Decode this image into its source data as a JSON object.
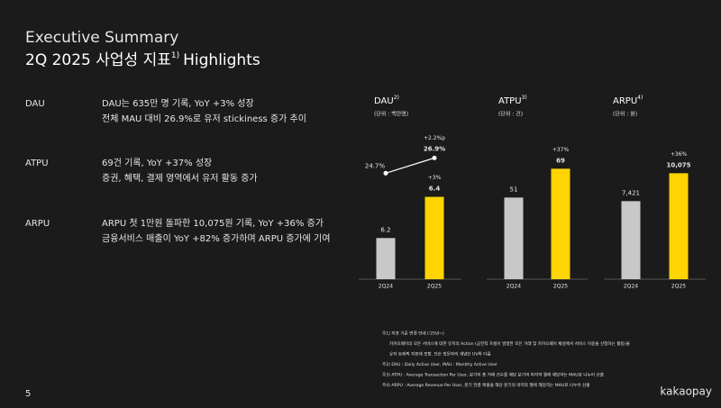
{
  "header": {
    "title": "Executive Summary",
    "subtitle": "2Q 2025 사업성 지표",
    "subtitle_note": "1)",
    "subtitle_end": "Highlights"
  },
  "sections": [
    {
      "label": "DAU",
      "lines": [
        "DAU는 635만 명 기록, YoY +3% 성장",
        "전체 MAU 대비 26.9%로 유저 stickiness 증가 추이"
      ]
    },
    {
      "label": "ATPU",
      "lines": [
        "69건 기록, YoY +37% 성장",
        "증권, 혜택, 결제 영역에서 유저 활동 증가"
      ]
    },
    {
      "label": "ARPU",
      "lines": [
        "ARPU 첫 1만원 돌파한 10,075원 기록, YoY +36% 증가",
        "금융서비스 매출이 YoY +82% 증가하며 ARPU 증가에 기여"
      ]
    }
  ],
  "chart_data": [
    {
      "type": "bar",
      "title": "DAU",
      "title_note": "2)",
      "subtitle": "(단위 : 백만명)",
      "categories": [
        "2Q24",
        "2Q25"
      ],
      "values": [
        6.2,
        6.4
      ],
      "colors": [
        "#c8c8c8",
        "#ffd400"
      ],
      "change_label": "+3%",
      "ylim": [
        6.0,
        6.7
      ],
      "line": {
        "values": [
          24.7,
          26.9
        ],
        "value_labels": [
          "24.7%",
          "26.9%"
        ],
        "change_label": "+2.2%p",
        "color": "#ffffff",
        "y2lim": [
          9.4,
          30.2
        ]
      }
    },
    {
      "type": "bar",
      "title": "ATPU",
      "title_note": "3)",
      "subtitle": "(단위 : 건)",
      "categories": [
        "2Q24",
        "2Q25"
      ],
      "values": [
        51,
        69
      ],
      "colors": [
        "#c8c8c8",
        "#ffd400"
      ],
      "change_label": "+37%",
      "ylim": [
        0,
        90
      ]
    },
    {
      "type": "bar",
      "title": "ARPU",
      "title_note": "4)",
      "subtitle": "(단위 : 원)",
      "categories": [
        "2Q24",
        "2Q25"
      ],
      "values": [
        7421,
        10075
      ],
      "value_labels": [
        "7,421",
        "10,075"
      ],
      "colors": [
        "#c8c8c8",
        "#ffd400"
      ],
      "change_label": "+36%",
      "ylim": [
        0,
        13700
      ]
    }
  ],
  "footnotes": [
    "주1) 지표 기준 변경 안내 ('25년~)",
    "카카오페이의 모든 서비스에 대한 유저의 Action (금전적 흐름이 발생한 모든 거래 및 카카오페이 채널에서 서비스 이용을 신청하는 활동)을",
    "유저 트래픽 지표에 포함. 단순 방문자의 개념인 UV와 다름",
    "주2) DAU : Daily Active User, MAU : Monthly Active User",
    "주3) ATPU : Average Transaction Per User, 분기의 총 거래 건수를 해당 분기의 마지막 월에 해당하는 MAU로 나누어 산출",
    "주4) ARPU : Average Revenue Per User, 분기 연결 매출을 해당 분기의 마지막 월에 해당하는 MAU로 나누어 산출"
  ],
  "page_number": "5",
  "logo": "kakaopay"
}
